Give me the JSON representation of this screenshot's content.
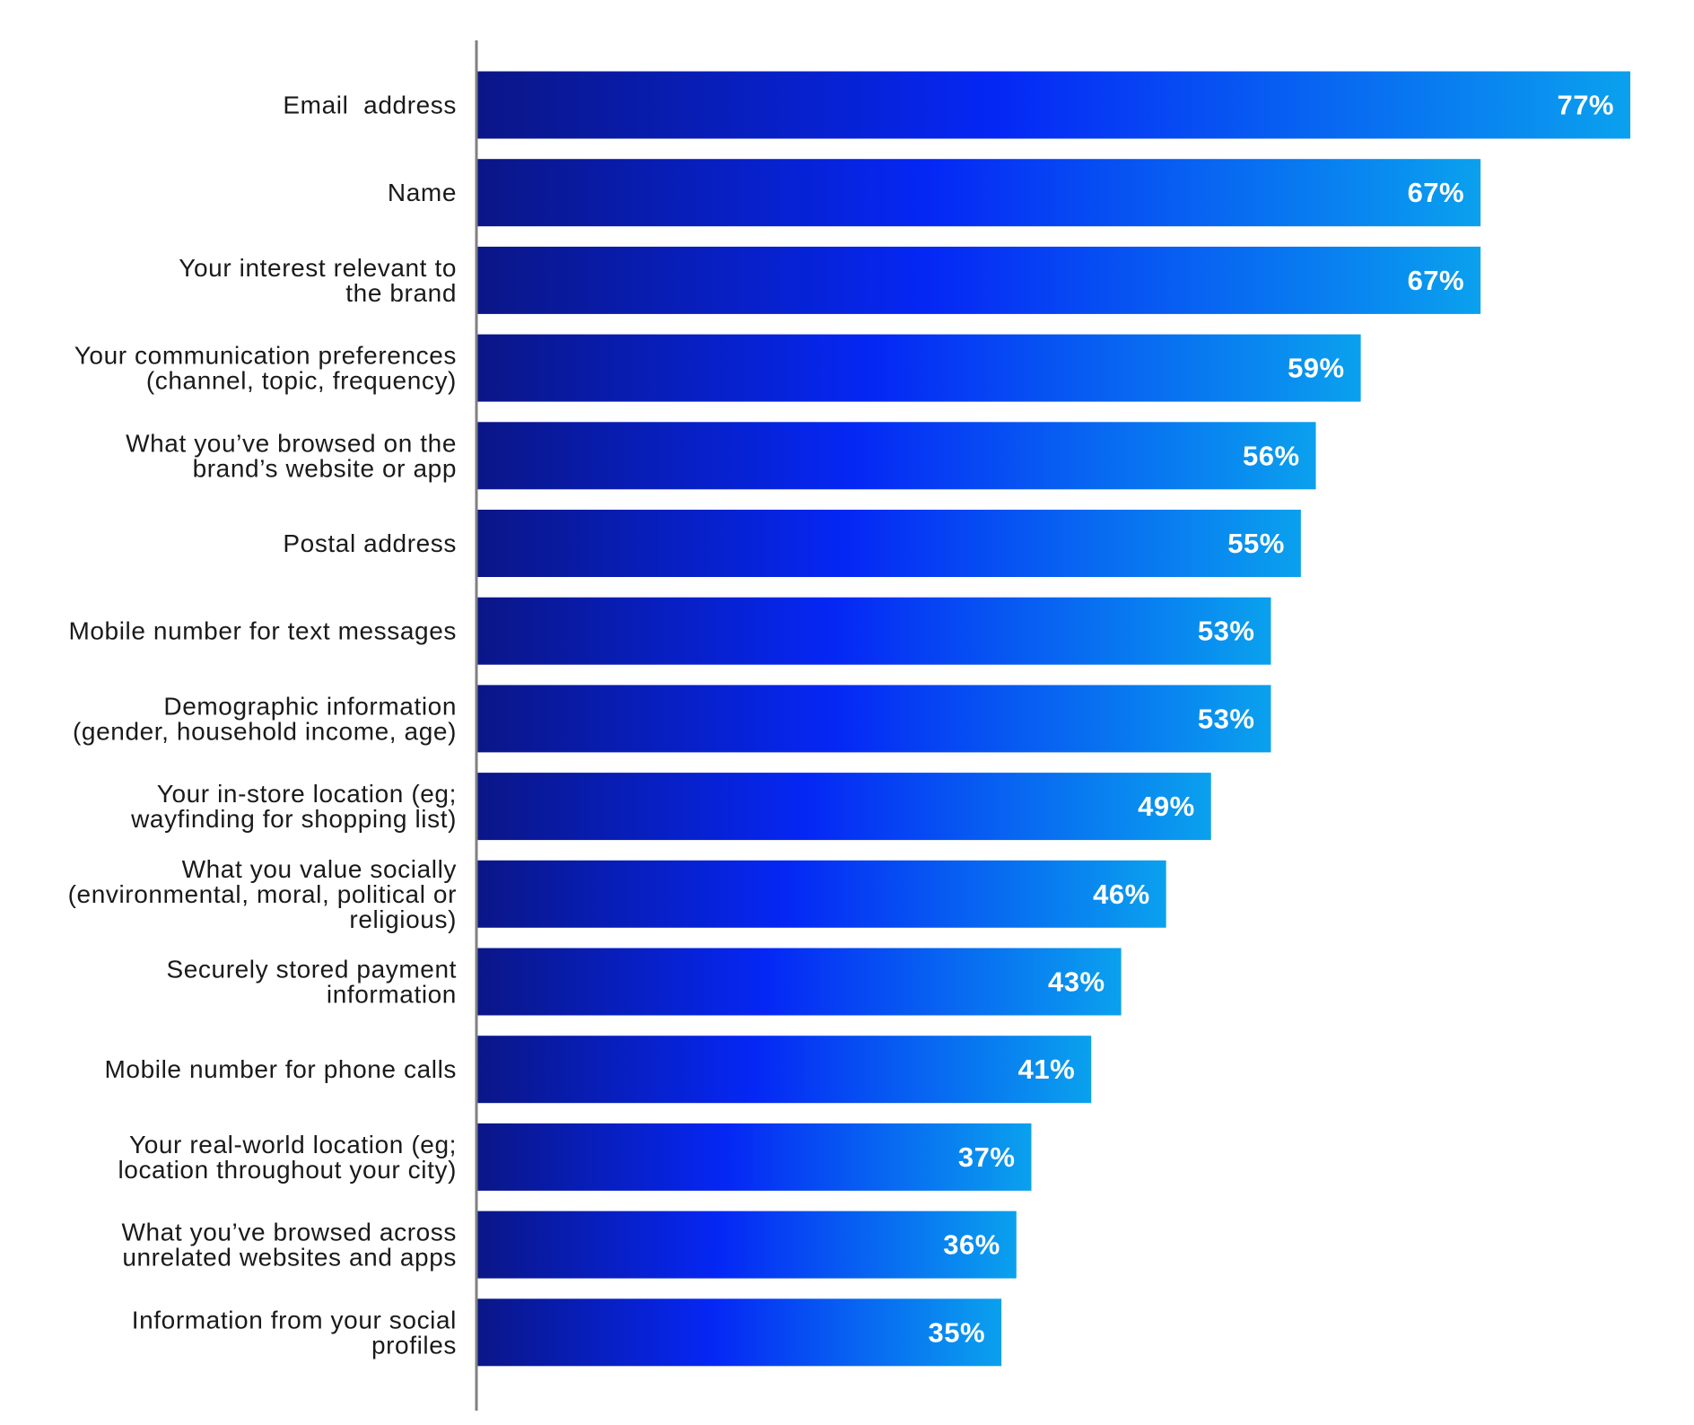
{
  "chart_data": {
    "type": "bar",
    "orientation": "horizontal",
    "categories": [
      "Email  address",
      "Name",
      "Your interest relevant to the brand",
      "Your communication preferences (channel, topic, frequency)",
      "What you’ve browsed on the brand’s website or app",
      "Postal address",
      "Mobile number for text messages",
      "Demographic information (gender, household income, age)",
      "Your in-store location (eg; wayfinding for shopping list)",
      "What you value socially (environmental, moral, political or religious)",
      "Securely stored payment information",
      "Mobile number for phone calls",
      "Your real-world location (eg; location throughout your city)",
      "What you’ve browsed across unrelated websites and apps",
      "Information from your social profiles"
    ],
    "category_lines": [
      [
        "Email  address"
      ],
      [
        "Name"
      ],
      [
        "Your interest relevant to",
        "the brand"
      ],
      [
        "Your communication preferences",
        "(channel, topic, frequency)"
      ],
      [
        "What you’ve browsed on the",
        "brand’s website or app"
      ],
      [
        "Postal address"
      ],
      [
        "Mobile number for text messages"
      ],
      [
        "Demographic information",
        "(gender, household income, age)"
      ],
      [
        "Your in-store location (eg;",
        "wayfinding for shopping list)"
      ],
      [
        "What you value socially",
        "(environmental, moral, political or",
        "religious)"
      ],
      [
        "Securely stored payment",
        "information"
      ],
      [
        "Mobile number for phone calls"
      ],
      [
        "Your real-world location (eg;",
        "location throughout your city)"
      ],
      [
        "What you’ve browsed across",
        "unrelated websites and apps"
      ],
      [
        "Information from your social",
        "profiles"
      ]
    ],
    "values": [
      77,
      67,
      67,
      59,
      56,
      55,
      53,
      53,
      49,
      46,
      43,
      41,
      37,
      36,
      35
    ],
    "value_labels": [
      "77%",
      "67%",
      "67%",
      "59%",
      "56%",
      "55%",
      "53%",
      "53%",
      "49%",
      "46%",
      "43%",
      "41%",
      "37%",
      "36%",
      "35%"
    ],
    "title": "",
    "xlabel": "",
    "ylabel": "",
    "xlim": [
      0,
      77
    ],
    "grid": false,
    "legend": "none",
    "colors": {
      "bar_gradient_start": "#0a1687",
      "bar_gradient_mid": "#0527f5",
      "bar_gradient_end": "#0aa1ee",
      "axis": "#808080",
      "category_text": "#1a1a1a",
      "value_text": "#ffffff"
    }
  }
}
